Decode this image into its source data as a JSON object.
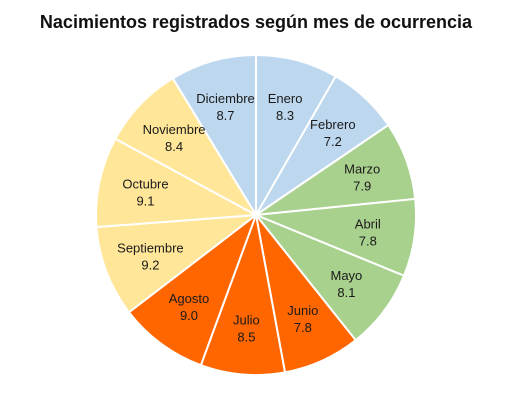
{
  "chart_data": {
    "type": "pie",
    "title": "Nacimientos registrados según mes de ocurrencia",
    "categories": [
      "Enero",
      "Febrero",
      "Marzo",
      "Abril",
      "Mayo",
      "Junio",
      "Julio",
      "Agosto",
      "Septiembre",
      "Octubre",
      "Noviembre",
      "Diciembre"
    ],
    "values": [
      8.3,
      7.2,
      7.9,
      7.8,
      8.1,
      7.8,
      8.5,
      9.0,
      9.2,
      9.1,
      8.4,
      8.7
    ],
    "value_labels": [
      "8.3",
      "7.2",
      "7.9",
      "7.8",
      "8.1",
      "7.8",
      "8.5",
      "9.0",
      "9.2",
      "9.1",
      "8.4",
      "8.7"
    ],
    "colors": [
      "#bdd7ee",
      "#bdd7ee",
      "#a9d18e",
      "#a9d18e",
      "#a9d18e",
      "#ff6600",
      "#ff6600",
      "#ff6600",
      "#ffe699",
      "#ffe699",
      "#ffe699",
      "#bdd7ee"
    ],
    "start_angle_deg": 0,
    "direction": "clockwise",
    "slice_border_color": "#ffffff",
    "legend": "none",
    "labels_inside": true
  }
}
